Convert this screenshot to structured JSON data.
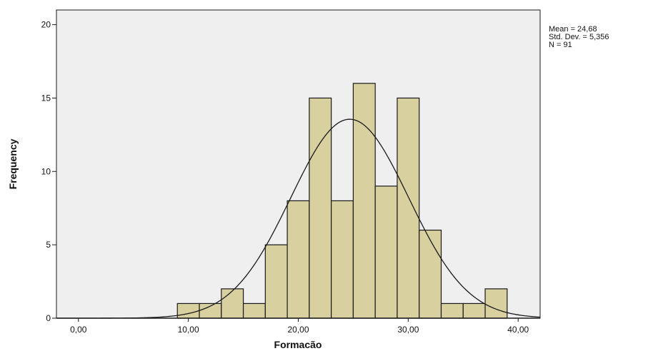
{
  "chart_data": {
    "type": "bar",
    "subtype": "histogram",
    "xlabel": "Formacão",
    "ylabel": "Frequency",
    "xlim": [
      -2,
      42
    ],
    "ylim": [
      0,
      21
    ],
    "bin_width": 2,
    "bins": [
      {
        "start": 9,
        "end": 11,
        "count": 1
      },
      {
        "start": 11,
        "end": 13,
        "count": 1
      },
      {
        "start": 13,
        "end": 15,
        "count": 2
      },
      {
        "start": 15,
        "end": 17,
        "count": 1
      },
      {
        "start": 17,
        "end": 19,
        "count": 5
      },
      {
        "start": 19,
        "end": 21,
        "count": 8
      },
      {
        "start": 21,
        "end": 23,
        "count": 15
      },
      {
        "start": 23,
        "end": 25,
        "count": 8
      },
      {
        "start": 25,
        "end": 27,
        "count": 16
      },
      {
        "start": 27,
        "end": 29,
        "count": 9
      },
      {
        "start": 29,
        "end": 31,
        "count": 15
      },
      {
        "start": 31,
        "end": 33,
        "count": 6
      },
      {
        "start": 33,
        "end": 35,
        "count": 1
      },
      {
        "start": 35,
        "end": 37,
        "count": 1
      },
      {
        "start": 37,
        "end": 39,
        "count": 2
      }
    ],
    "x_ticks": [
      {
        "value": 0,
        "label": "0,00"
      },
      {
        "value": 10,
        "label": "10,00"
      },
      {
        "value": 20,
        "label": "20,00"
      },
      {
        "value": 30,
        "label": "30,00"
      },
      {
        "value": 40,
        "label": "40,00"
      }
    ],
    "y_ticks": [
      {
        "value": 0,
        "label": "0"
      },
      {
        "value": 5,
        "label": "5"
      },
      {
        "value": 10,
        "label": "10"
      },
      {
        "value": 15,
        "label": "15"
      },
      {
        "value": 20,
        "label": "20"
      }
    ],
    "normal_curve": {
      "mean": 24.68,
      "std_dev": 5.356,
      "n": 91
    },
    "stats_labels": [
      "Mean = 24,68",
      "Std. Dev. = 5,356",
      "N = 91"
    ],
    "grid": false,
    "colors": {
      "plot_background": "#efefef",
      "bar_fill": "#d8d09e",
      "bar_stroke": "#1a1a1a",
      "curve": "#1a1a1a",
      "axis": "#1a1a1a"
    }
  }
}
